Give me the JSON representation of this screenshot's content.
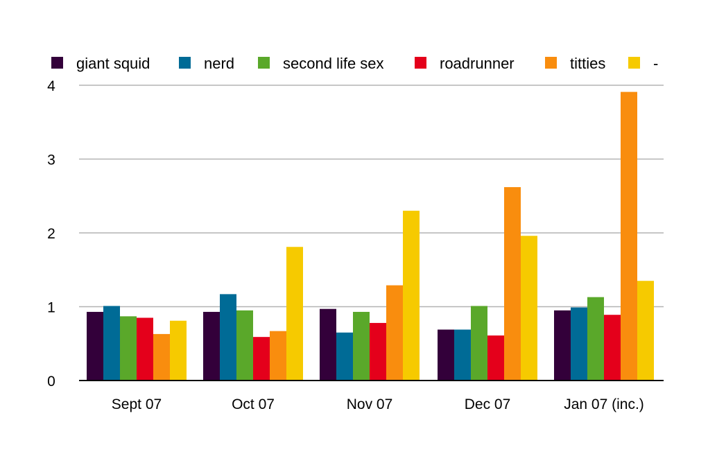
{
  "chart_data": {
    "type": "bar",
    "categories": [
      "Sept 07",
      "Oct 07",
      "Nov 07",
      "Dec 07",
      "Jan 07 (inc.)"
    ],
    "series": [
      {
        "name": "giant squid",
        "color": "#33003a",
        "values": [
          0.93,
          0.93,
          0.97,
          0.69,
          0.95
        ]
      },
      {
        "name": "nerd",
        "color": "#006b96",
        "values": [
          1.01,
          1.17,
          0.65,
          0.69,
          0.99
        ]
      },
      {
        "name": "second life sex",
        "color": "#5aa82a",
        "values": [
          0.87,
          0.95,
          0.93,
          1.01,
          1.13
        ]
      },
      {
        "name": "roadrunner",
        "color": "#e4001b",
        "values": [
          0.85,
          0.59,
          0.78,
          0.61,
          0.89
        ]
      },
      {
        "name": "titties",
        "color": "#f98d0e",
        "values": [
          0.63,
          0.67,
          1.29,
          2.62,
          3.91
        ]
      },
      {
        "name": "-",
        "color": "#f6ca00",
        "values": [
          0.81,
          1.81,
          2.3,
          1.96,
          1.35
        ]
      }
    ],
    "y_ticks": [
      "0",
      "1",
      "2",
      "3",
      "4"
    ],
    "ylim": [
      0,
      4
    ],
    "grid": true,
    "legend": "top"
  }
}
